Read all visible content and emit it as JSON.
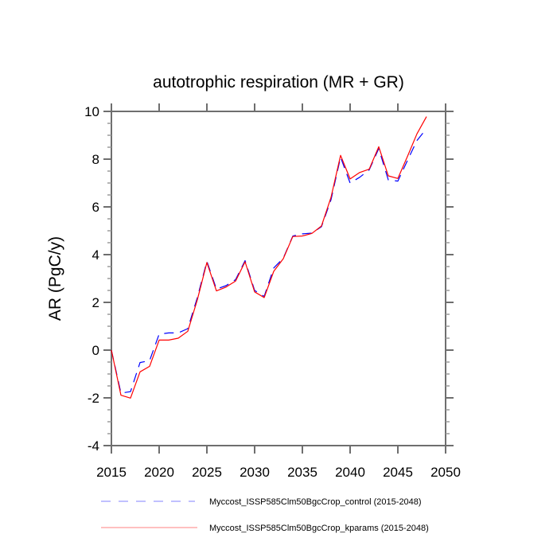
{
  "chart_data": {
    "type": "line",
    "title": "autotrophic respiration (MR + GR)",
    "xlabel": "",
    "ylabel": "AR  (PgC/y)",
    "xlim": [
      2015,
      2050
    ],
    "ylim": [
      -4,
      10
    ],
    "x_ticks": [
      2015,
      2020,
      2025,
      2030,
      2035,
      2040,
      2045,
      2050
    ],
    "x_tick_labels": [
      "2015",
      "2020",
      "2025",
      "2030",
      "2035",
      "2040",
      "2045",
      "2050"
    ],
    "y_ticks": [
      -4,
      -2,
      0,
      2,
      4,
      6,
      8,
      10
    ],
    "y_tick_labels": [
      "-4",
      "-2",
      "0",
      "2",
      "4",
      "6",
      "8",
      "10"
    ],
    "y_minor_step": 0.5,
    "grid": false,
    "legend_position": "bottom",
    "x": [
      2015,
      2016,
      2017,
      2018,
      2019,
      2020,
      2021,
      2022,
      2023,
      2024,
      2025,
      2026,
      2027,
      2028,
      2029,
      2030,
      2031,
      2032,
      2033,
      2034,
      2035,
      2036,
      2037,
      2038,
      2039,
      2040,
      2041,
      2042,
      2043,
      2044,
      2045,
      2046,
      2047,
      2048
    ],
    "series": [
      {
        "name": "Myccost_ISSP585Clm50BgcCrop_control (2015-2048)",
        "color": "#0000ff",
        "style": "dashed",
        "values": [
          0.0,
          -1.8,
          -1.74,
          -0.52,
          -0.44,
          0.67,
          0.72,
          0.72,
          0.9,
          2.2,
          3.72,
          2.56,
          2.7,
          2.95,
          3.75,
          2.5,
          2.25,
          3.44,
          3.85,
          4.78,
          4.87,
          4.9,
          5.17,
          6.3,
          8.08,
          7.0,
          7.24,
          7.55,
          8.44,
          7.13,
          7.08,
          7.94,
          8.78,
          9.28
        ]
      },
      {
        "name": "Myccost_ISSP585Clm50BgcCrop_kparams (2015-2048)",
        "color": "#ff0000",
        "style": "solid",
        "values": [
          0.0,
          -1.89,
          -2.01,
          -0.91,
          -0.68,
          0.42,
          0.42,
          0.5,
          0.79,
          2.11,
          3.67,
          2.48,
          2.64,
          2.89,
          3.7,
          2.44,
          2.2,
          3.3,
          3.83,
          4.76,
          4.78,
          4.89,
          5.2,
          6.4,
          8.16,
          7.17,
          7.44,
          7.58,
          8.52,
          7.3,
          7.19,
          8.11,
          9.06,
          9.78
        ]
      }
    ]
  }
}
